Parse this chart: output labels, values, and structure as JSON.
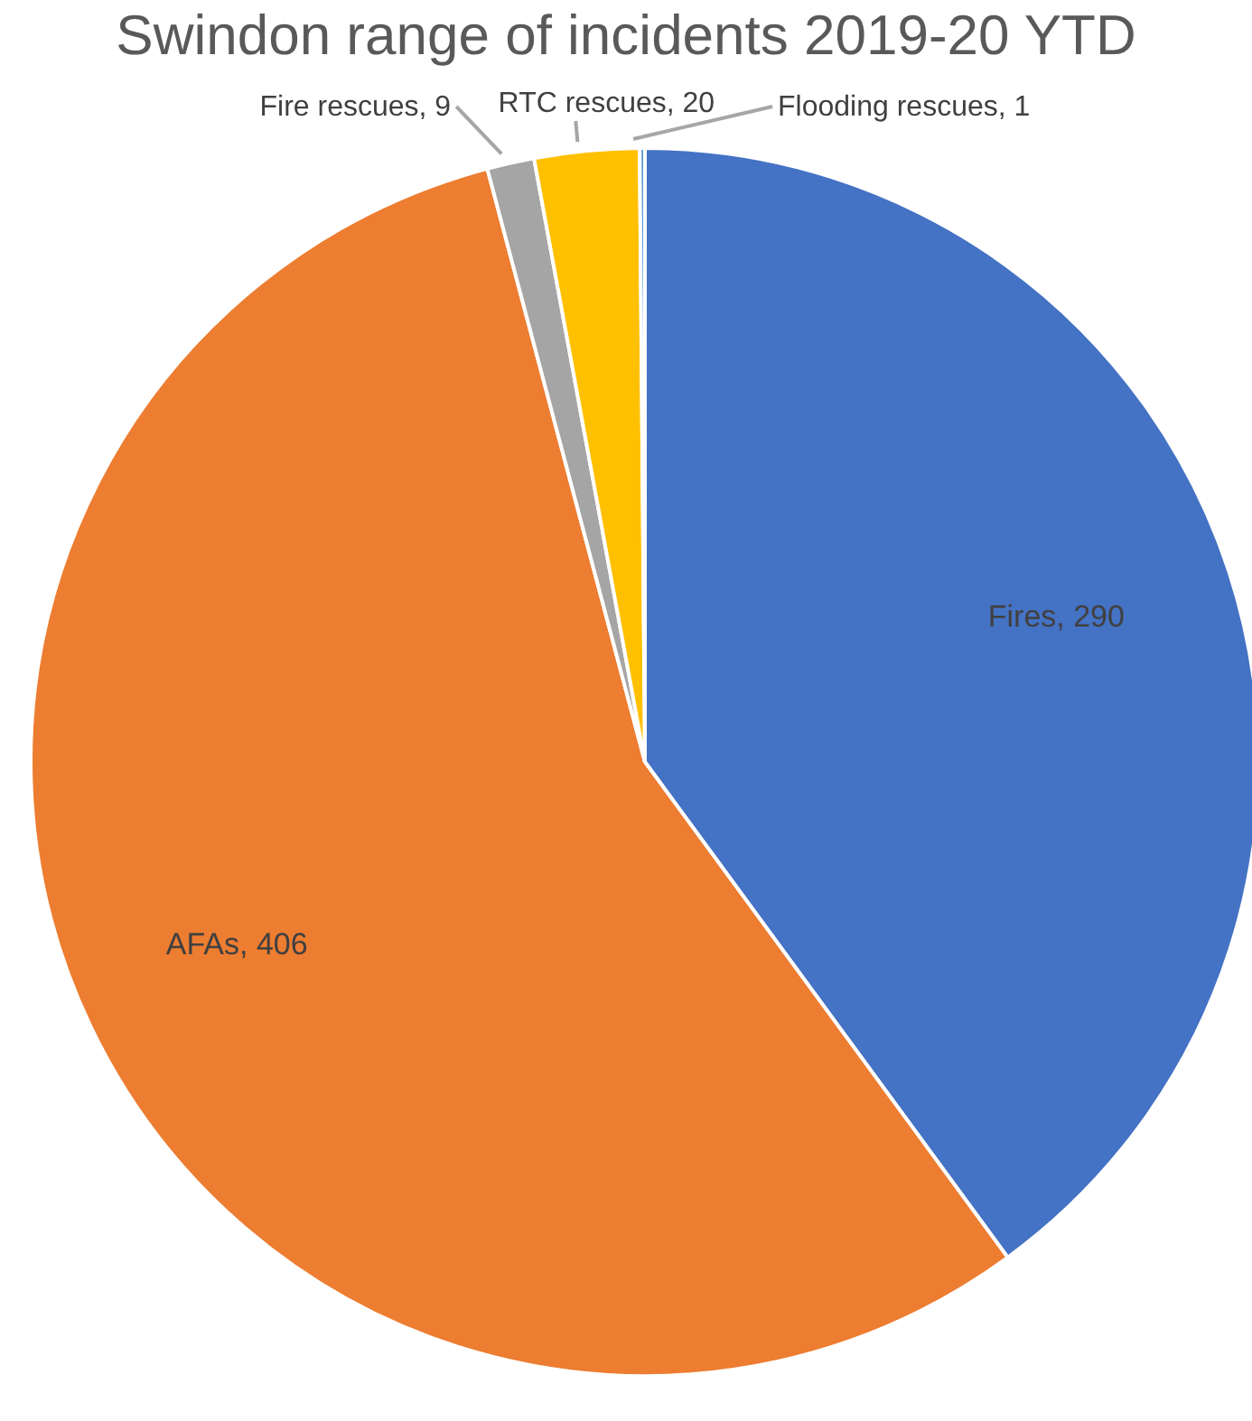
{
  "chart_data": {
    "type": "pie",
    "title": "Swindon range of incidents 2019-20 YTD",
    "categories": [
      "Fires",
      "AFAs",
      "Fire rescues",
      "RTC rescues",
      "Flooding rescues"
    ],
    "values": [
      290,
      406,
      9,
      20,
      1
    ],
    "colors": [
      "#4472c4",
      "#ed7d31",
      "#a5a5a5",
      "#ffc000",
      "#5b9bd5"
    ],
    "value_labels": [
      ", 290",
      ", 406",
      ", 9",
      ", 20",
      ", 1"
    ],
    "legend": false
  }
}
